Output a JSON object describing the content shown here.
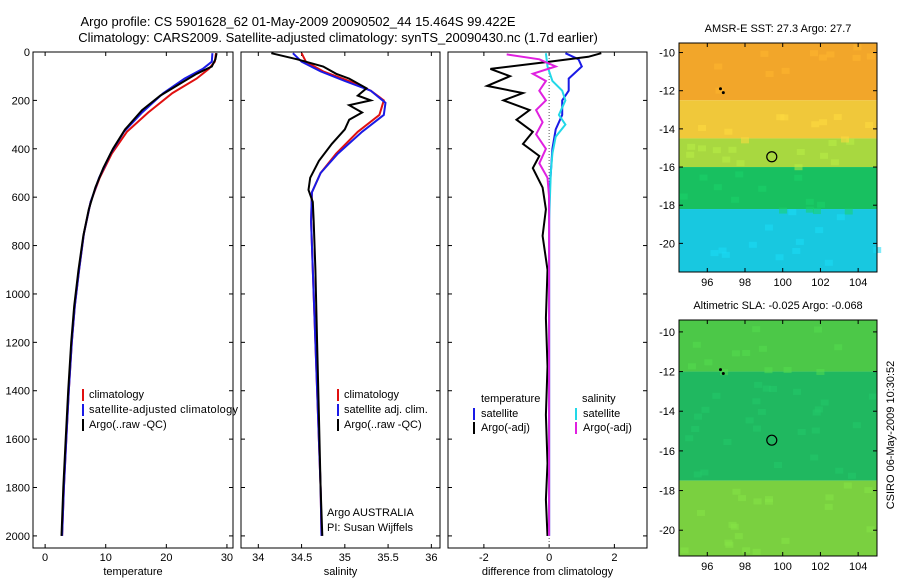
{
  "title_line1": "Argo profile: CS 5901628_62 01-May-2009 20090502_44 15.464S 99.422E",
  "title_line2": "Climatology: CARS2009. Satellite-adjusted climatology: synTS_20090430.nc (1.7d earlier)",
  "side_credit": "CSIRO 06-May-2009 10:30:52",
  "colors": {
    "climatology": "#e01010",
    "satellite": "#1a1ae6",
    "argo": "#000000",
    "sal_satellite": "#22d8e8",
    "sal_argo": "#e020e0"
  },
  "chart_data": [
    {
      "id": "temperature",
      "type": "line",
      "xlabel": "temperature",
      "ylabel": "",
      "xlim": [
        -2,
        31
      ],
      "ylim": [
        2050,
        0
      ],
      "xticks": [
        "0",
        "10",
        "20",
        "30"
      ],
      "xtick_values": [
        0,
        10,
        20,
        30
      ],
      "yticks": [
        "0",
        "200",
        "400",
        "600",
        "800",
        "1000",
        "1200",
        "1400",
        "1600",
        "1800",
        "2000"
      ],
      "ytick_values": [
        0,
        200,
        400,
        600,
        800,
        1000,
        1200,
        1400,
        1600,
        1800,
        2000
      ],
      "legend": [
        "climatology",
        "satellite-adjusted climatology",
        "Argo(..raw -QC)"
      ],
      "series": [
        {
          "name": "climatology",
          "color": "#e01010",
          "points": [
            [
              28.2,
              5
            ],
            [
              28.0,
              40
            ],
            [
              27.0,
              70
            ],
            [
              25.0,
              110
            ],
            [
              21.0,
              170
            ],
            [
              17.0,
              250
            ],
            [
              13.5,
              330
            ],
            [
              11.0,
              420
            ],
            [
              9.0,
              520
            ],
            [
              7.5,
              620
            ],
            [
              6.4,
              750
            ],
            [
              5.6,
              900
            ],
            [
              4.9,
              1050
            ],
            [
              4.4,
              1200
            ],
            [
              3.9,
              1400
            ],
            [
              3.5,
              1600
            ],
            [
              3.1,
              1800
            ],
            [
              2.8,
              2000
            ]
          ]
        },
        {
          "name": "satellite-adjusted climatology",
          "color": "#1a1ae6",
          "points": [
            [
              27.6,
              5
            ],
            [
              27.5,
              40
            ],
            [
              26.0,
              70
            ],
            [
              23.0,
              110
            ],
            [
              19.5,
              170
            ],
            [
              16.0,
              250
            ],
            [
              13.0,
              330
            ],
            [
              10.8,
              420
            ],
            [
              8.9,
              520
            ],
            [
              7.5,
              620
            ],
            [
              6.4,
              750
            ],
            [
              5.6,
              900
            ],
            [
              4.9,
              1050
            ],
            [
              4.4,
              1200
            ],
            [
              3.9,
              1400
            ],
            [
              3.5,
              1600
            ],
            [
              3.1,
              1800
            ],
            [
              2.8,
              2000
            ]
          ]
        },
        {
          "name": "Argo(..raw -QC)",
          "color": "#000000",
          "points": [
            [
              28.3,
              5
            ],
            [
              28.1,
              30
            ],
            [
              27.5,
              60
            ],
            [
              25.0,
              90
            ],
            [
              23.0,
              120
            ],
            [
              19.0,
              180
            ],
            [
              16.0,
              240
            ],
            [
              13.2,
              320
            ],
            [
              11.2,
              400
            ],
            [
              9.6,
              480
            ],
            [
              8.3,
              560
            ],
            [
              7.2,
              650
            ],
            [
              6.3,
              760
            ],
            [
              5.5,
              900
            ],
            [
              4.8,
              1050
            ],
            [
              4.3,
              1200
            ],
            [
              3.8,
              1400
            ],
            [
              3.4,
              1600
            ],
            [
              3.0,
              1800
            ],
            [
              2.7,
              2000
            ]
          ]
        }
      ]
    },
    {
      "id": "salinity",
      "type": "line",
      "xlabel": "salinity",
      "ylabel": "",
      "xlim": [
        33.8,
        36.1
      ],
      "ylim": [
        2050,
        0
      ],
      "xticks": [
        "34",
        "34.5",
        "35",
        "35.5",
        "36"
      ],
      "xtick_values": [
        34,
        34.5,
        35,
        35.5,
        36
      ],
      "legend": [
        "climatology",
        "satellite adj. clim.",
        "Argo(..raw -QC)"
      ],
      "annotation": [
        "Argo AUSTRALIA",
        "PI: Susan Wijffels"
      ],
      "series": [
        {
          "name": "climatology",
          "color": "#e01010",
          "points": [
            [
              34.5,
              5
            ],
            [
              34.55,
              40
            ],
            [
              34.75,
              80
            ],
            [
              35.05,
              120
            ],
            [
              35.3,
              160
            ],
            [
              35.45,
              200
            ],
            [
              35.4,
              260
            ],
            [
              35.15,
              330
            ],
            [
              34.9,
              420
            ],
            [
              34.72,
              500
            ],
            [
              34.62,
              580
            ],
            [
              34.61,
              700
            ],
            [
              34.63,
              900
            ],
            [
              34.66,
              1200
            ],
            [
              34.69,
              1500
            ],
            [
              34.72,
              1800
            ],
            [
              34.73,
              2000
            ]
          ]
        },
        {
          "name": "satellite adj. clim.",
          "color": "#1a1ae6",
          "points": [
            [
              34.4,
              5
            ],
            [
              34.5,
              40
            ],
            [
              34.72,
              80
            ],
            [
              35.0,
              120
            ],
            [
              35.3,
              160
            ],
            [
              35.47,
              210
            ],
            [
              35.45,
              260
            ],
            [
              35.2,
              330
            ],
            [
              34.92,
              420
            ],
            [
              34.72,
              500
            ],
            [
              34.62,
              580
            ],
            [
              34.61,
              700
            ],
            [
              34.63,
              900
            ],
            [
              34.66,
              1200
            ],
            [
              34.69,
              1500
            ],
            [
              34.72,
              1800
            ],
            [
              34.73,
              2000
            ]
          ]
        },
        {
          "name": "Argo(..raw -QC)",
          "color": "#000000",
          "points": [
            [
              34.15,
              5
            ],
            [
              34.45,
              30
            ],
            [
              34.75,
              60
            ],
            [
              34.9,
              90
            ],
            [
              35.05,
              110
            ],
            [
              35.25,
              150
            ],
            [
              35.15,
              180
            ],
            [
              35.3,
              200
            ],
            [
              35.05,
              220
            ],
            [
              35.2,
              250
            ],
            [
              35.05,
              280
            ],
            [
              35.0,
              320
            ],
            [
              34.85,
              380
            ],
            [
              34.7,
              450
            ],
            [
              34.6,
              520
            ],
            [
              34.58,
              570
            ],
            [
              34.63,
              620
            ],
            [
              34.64,
              700
            ],
            [
              34.66,
              900
            ],
            [
              34.68,
              1200
            ],
            [
              34.7,
              1500
            ],
            [
              34.72,
              1800
            ],
            [
              34.74,
              2000
            ]
          ]
        }
      ]
    },
    {
      "id": "difference",
      "type": "line",
      "xlabel": "difference from climatology",
      "ylabel": "",
      "xlim": [
        -3.1,
        3.0
      ],
      "ylim": [
        2050,
        0
      ],
      "xticks": [
        "-2",
        "0",
        "2"
      ],
      "xtick_values": [
        -2,
        0,
        2
      ],
      "legend_headers": [
        "temperature",
        "salinity"
      ],
      "legend": [
        "satellite",
        "Argo(-adj)",
        "satellite",
        "Argo(-adj)"
      ],
      "series": [
        {
          "name": "temperature satellite",
          "color": "#1a1ae6",
          "points": [
            [
              0.5,
              5
            ],
            [
              0.9,
              30
            ],
            [
              1.0,
              60
            ],
            [
              0.6,
              110
            ],
            [
              0.6,
              160
            ],
            [
              0.4,
              200
            ],
            [
              0.4,
              260
            ],
            [
              0.2,
              320
            ],
            [
              0.1,
              400
            ],
            [
              0.05,
              500
            ],
            [
              0.0,
              600
            ],
            [
              0.0,
              800
            ],
            [
              0.0,
              1200
            ],
            [
              0.0,
              1600
            ],
            [
              0.0,
              2000
            ]
          ]
        },
        {
          "name": "temperature Argo(-adj)",
          "color": "#000000",
          "points": [
            [
              1.6,
              5
            ],
            [
              1.2,
              20
            ],
            [
              0.0,
              40
            ],
            [
              -1.8,
              70
            ],
            [
              -1.2,
              100
            ],
            [
              -1.9,
              140
            ],
            [
              -0.8,
              170
            ],
            [
              -1.4,
              200
            ],
            [
              -0.6,
              240
            ],
            [
              -1.0,
              280
            ],
            [
              -0.5,
              330
            ],
            [
              -0.8,
              380
            ],
            [
              -0.3,
              430
            ],
            [
              -0.5,
              480
            ],
            [
              -0.2,
              560
            ],
            [
              -0.1,
              650
            ],
            [
              -0.2,
              760
            ],
            [
              -0.05,
              900
            ],
            [
              -0.1,
              1100
            ],
            [
              -0.05,
              1300
            ],
            [
              -0.1,
              1500
            ],
            [
              -0.05,
              1700
            ],
            [
              -0.1,
              1850
            ],
            [
              -0.05,
              2000
            ]
          ]
        },
        {
          "name": "salinity satellite",
          "color": "#22d8e8",
          "points": [
            [
              -0.1,
              5
            ],
            [
              -0.05,
              60
            ],
            [
              0.1,
              120
            ],
            [
              0.4,
              160
            ],
            [
              0.5,
              200
            ],
            [
              0.3,
              260
            ],
            [
              0.5,
              300
            ],
            [
              0.2,
              350
            ],
            [
              0.1,
              420
            ],
            [
              0.05,
              500
            ],
            [
              0.0,
              700
            ],
            [
              0.0,
              1000
            ],
            [
              0.0,
              1500
            ],
            [
              0.0,
              2000
            ]
          ]
        },
        {
          "name": "salinity Argo(-adj)",
          "color": "#e020e0",
          "points": [
            [
              -1.3,
              10
            ],
            [
              -0.3,
              30
            ],
            [
              0.2,
              60
            ],
            [
              -0.5,
              90
            ],
            [
              -0.1,
              120
            ],
            [
              -0.3,
              160
            ],
            [
              -0.1,
              200
            ],
            [
              -0.4,
              240
            ],
            [
              -0.2,
              290
            ],
            [
              -0.4,
              340
            ],
            [
              -0.1,
              400
            ],
            [
              -0.3,
              460
            ],
            [
              -0.05,
              520
            ],
            [
              0.0,
              600
            ],
            [
              0.0,
              800
            ],
            [
              0.0,
              1200
            ],
            [
              0.0,
              1600
            ],
            [
              0.0,
              2000
            ]
          ]
        }
      ]
    },
    {
      "id": "sst_map",
      "type": "heatmap",
      "title": "AMSR-E SST: 27.3 Argo: 27.7",
      "xlim": [
        94.5,
        105
      ],
      "ylim": [
        -21.5,
        -9.5
      ],
      "xticks": [
        "96",
        "98",
        "100",
        "102",
        "104"
      ],
      "xtick_values": [
        96,
        98,
        100,
        102,
        104
      ],
      "yticks": [
        "-10",
        "-12",
        "-14",
        "-16",
        "-18",
        "-20"
      ],
      "ytick_values": [
        -10,
        -12,
        -14,
        -16,
        -18,
        -20
      ],
      "float_position": [
        99.42,
        -15.46
      ],
      "float_track": [
        [
          96.85,
          -12.1
        ],
        [
          96.7,
          -11.9
        ]
      ],
      "bands": [
        {
          "from": -9.5,
          "to": -12.5,
          "color": "#f2a62a"
        },
        {
          "from": -12.5,
          "to": -14.5,
          "color": "#f0c83a"
        },
        {
          "from": -14.5,
          "to": -16.0,
          "color": "#a8d840"
        },
        {
          "from": -16.0,
          "to": -18.2,
          "color": "#18c060"
        },
        {
          "from": -18.2,
          "to": -21.5,
          "color": "#18c8e0"
        }
      ]
    },
    {
      "id": "sla_map",
      "type": "heatmap",
      "title": "Altimetric SLA: -0.025 Argo: -0.068",
      "xlim": [
        94.5,
        105
      ],
      "ylim": [
        -21.3,
        -9.4
      ],
      "xticks": [
        "96",
        "98",
        "100",
        "102",
        "104"
      ],
      "xtick_values": [
        96,
        98,
        100,
        102,
        104
      ],
      "yticks": [
        "-10",
        "-12",
        "-14",
        "-16",
        "-18",
        "-20"
      ],
      "ytick_values": [
        -10,
        -12,
        -14,
        -16,
        -18,
        -20
      ],
      "float_position": [
        99.42,
        -15.46
      ],
      "float_track": [
        [
          96.85,
          -12.1
        ],
        [
          96.7,
          -11.9
        ]
      ],
      "bands": [
        {
          "from": -9.4,
          "to": -12.0,
          "color": "#4cc848"
        },
        {
          "from": -12.0,
          "to": -17.5,
          "color": "#20b860"
        },
        {
          "from": -17.5,
          "to": -21.3,
          "color": "#7ad040"
        }
      ]
    }
  ]
}
